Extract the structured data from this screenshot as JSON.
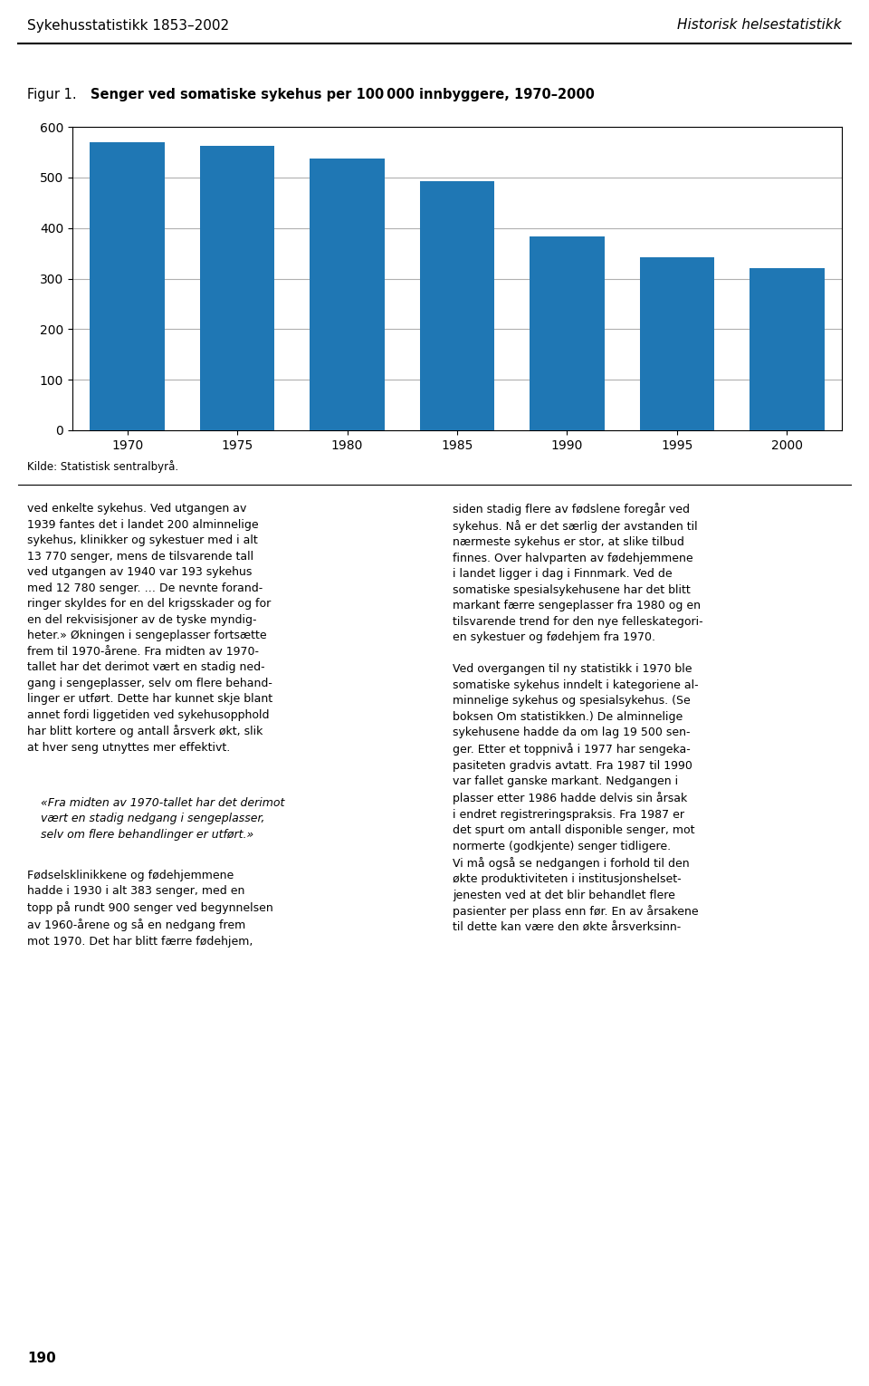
{
  "chart_data": {
    "type": "bar",
    "title": "Senger ved somatiske sykehus per 100 000 innbyggere, 1970–2000",
    "categories": [
      1970,
      1975,
      1980,
      1985,
      1990,
      1995,
      2000
    ],
    "values": [
      570,
      562,
      537,
      493,
      384,
      342,
      320
    ],
    "ylim": [
      0,
      600
    ],
    "yticks": [
      0,
      100,
      200,
      300,
      400,
      500,
      600
    ],
    "grid": true,
    "annotations": [
      "Sykehusstatistikk 1853–2002",
      "Historisk helsestatistikk",
      "Figur 1.",
      "Kilde: Statistisk sentralbyrå.",
      "ved enkelte sykehus. Ved utgangen av\n1939 fantes det i landet 200 alminnelige\nsykehus, klinikker og sykestuer med i alt\n13 770 senger, mens de tilsvarende tall\nved utgangen av 1940 var 193 sykehus\nmed 12 780 senger. … De nevnte forand-\nringer skyldes for en del krigsskader og for\nen del rekvisisjoner av de tyske myndig-\nheter.» Økningen i sengeplasser fortsætte\nfrem til 1970-årene. Fra midten av 1970-\ntallet har det derimot vært en stadig ned-\ngang i sengeplasser, selv om flere behand-\nlinger er utført. Dette har kunnet skje blant\nannet fordi liggetiden ved sykehusopphold\nhar blitt kortere og antall årsverk økt, slik\nat hver seng utnyttes mer effektivt.",
      "«Fra midten av 1970-tallet har det derimot\nvært en stadig nedgang i sengeplasser,\nselv om flere behandlinger er utført.»",
      "Fødselsklinikkene og fødehjemmene\nhadde i 1930 i alt 383 senger, med en\ntopp på rundt 900 senger ved begynnelsen\nav 1960-årene og så en nedgang frem\nmot 1970. Det har blitt færre fødehjem,",
      "siden stadig flere av fødslene foregår ved\nsykehus. Nå er det særlig der avstanden til\nnærmeste sykehus er stor, at slike tilbud\nfinnes. Over halvparten av fødehjemmene\ni landet ligger i dag i Finnmark. Ved de\nsomatiske spesialsykehusene har det blitt\nmarkant færre sengeplasser fra 1980 og en\ntilsvarende trend for den nye felleskategori-\nen sykestuer og fødehjem fra 1970.\n\nVed overgangen til ny statistikk i 1970 ble\nsomatiske sykehus inndelt i kategoriene al-\nminnelige sykehus og spesialsykehus. (Se\nboksen Om statistikken.) De alminnelige\nsykehusene hadde da om lag 19 500 sen-\nger. Etter et toppnivå i 1977 har sengeka-\npasiteten gradvis avtatt. Fra 1987 til 1990\nvar fallet ganske markant. Nedgangen i\nplasser etter 1986 hadde delvis sin årsak\ni endret registreringspraksis. Fra 1987 er\ndet spurt om antall disponible senger, mot\nnormerte (godkjente) senger tidligere.\nVi må også se nedgangen i forhold til den\nøkte produktiviteten i institusjonshelset-\njenesten ved at det blir behandlet flere\npasienter per plass enn før. En av årsakene\ntil dette kan være den økte årsverksinn-",
      "190"
    ]
  }
}
